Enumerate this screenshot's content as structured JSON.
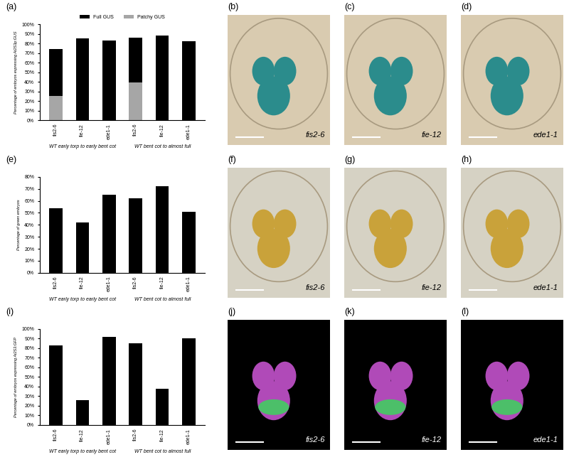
{
  "chart_data": [
    {
      "type": "bar",
      "title": "(a)",
      "stacked": true,
      "legend": "top",
      "ylabel": "Percentage of embryos expressing At2S3p:GUS",
      "categories": [
        "fis2-6",
        "fie-12",
        "ede1-1",
        "fis2-6",
        "fie-12",
        "ede1-1"
      ],
      "groups": [
        "WT early torp to early bent cot",
        "WT bent cot to almost full"
      ],
      "series": [
        {
          "name": "Patchy GUS",
          "color": "#a6a6a6",
          "values": [
            25,
            0,
            0,
            39,
            0,
            0
          ]
        },
        {
          "name": "Full GUS",
          "color": "#000000",
          "values": [
            49,
            85,
            83,
            47,
            88,
            82
          ]
        }
      ],
      "ylim": [
        0,
        100
      ],
      "yticks": [
        {
          "value": 0,
          "label": "0%"
        },
        {
          "value": 10,
          "label": "10%"
        },
        {
          "value": 20,
          "label": "20%"
        },
        {
          "value": 30,
          "label": "30%"
        },
        {
          "value": 40,
          "label": "40%"
        },
        {
          "value": 50,
          "label": "50%"
        },
        {
          "value": 60,
          "label": "60%"
        },
        {
          "value": 70,
          "label": "70%"
        },
        {
          "value": 80,
          "label": "80%"
        },
        {
          "value": 90,
          "label": "90%"
        },
        {
          "value": 100,
          "label": "100%"
        }
      ],
      "grid": false
    },
    {
      "type": "bar",
      "title": "(e)",
      "ylabel": "Percentage of green embryos",
      "categories": [
        "fis2-6",
        "fie-12",
        "ede1-1",
        "fis2-6",
        "fie-12",
        "ede1-1"
      ],
      "groups": [
        "WT early torp to early bent cot",
        "WT bent cot to almost full"
      ],
      "values": [
        54,
        42,
        65,
        62,
        72,
        51
      ],
      "color": "#000000",
      "ylim": [
        0,
        80
      ],
      "yticks": [
        {
          "value": 0,
          "label": "0%"
        },
        {
          "value": 10,
          "label": "10%"
        },
        {
          "value": 20,
          "label": "20%"
        },
        {
          "value": 30,
          "label": "30%"
        },
        {
          "value": 40,
          "label": "40%"
        },
        {
          "value": 50,
          "label": "50%"
        },
        {
          "value": 60,
          "label": "60%"
        },
        {
          "value": 70,
          "label": "70%"
        },
        {
          "value": 80,
          "label": "80%"
        }
      ],
      "grid": false
    },
    {
      "type": "bar",
      "title": "(i)",
      "ylabel": "Percentage of embryos expressing At2S3:GFP",
      "categories": [
        "fis2-6",
        "fie-12",
        "ede1-1",
        "fis2-6",
        "fie-12",
        "ede1-1"
      ],
      "groups": [
        "WT early torp to early bent cot",
        "WT bent cot to almost full"
      ],
      "values": [
        83,
        26,
        92,
        85,
        38,
        90
      ],
      "color": "#000000",
      "ylim": [
        0,
        100
      ],
      "yticks": [
        {
          "value": 0,
          "label": "0%"
        },
        {
          "value": 10,
          "label": "10%"
        },
        {
          "value": 20,
          "label": "20%"
        },
        {
          "value": 30,
          "label": "30%"
        },
        {
          "value": 40,
          "label": "40%"
        },
        {
          "value": 50,
          "label": "50%"
        },
        {
          "value": 60,
          "label": "60%"
        },
        {
          "value": 70,
          "label": "70%"
        },
        {
          "value": 80,
          "label": "80%"
        },
        {
          "value": 90,
          "label": "90%"
        },
        {
          "value": 100,
          "label": "100%"
        }
      ],
      "grid": false
    }
  ],
  "images": [
    [
      {
        "title": "(b)",
        "label": "fis2-6"
      },
      {
        "title": "(c)",
        "label": "fie-12"
      },
      {
        "title": "(d)",
        "label": "ede1-1"
      }
    ],
    [
      {
        "title": "(f)",
        "label": "fis2-6"
      },
      {
        "title": "(g)",
        "label": "fie-12"
      },
      {
        "title": "(h)",
        "label": "ede1-1"
      }
    ],
    [
      {
        "title": "(j)",
        "label": "fis2-6"
      },
      {
        "title": "(k)",
        "label": "fie-12"
      },
      {
        "title": "(l)",
        "label": "ede1-1"
      }
    ]
  ]
}
